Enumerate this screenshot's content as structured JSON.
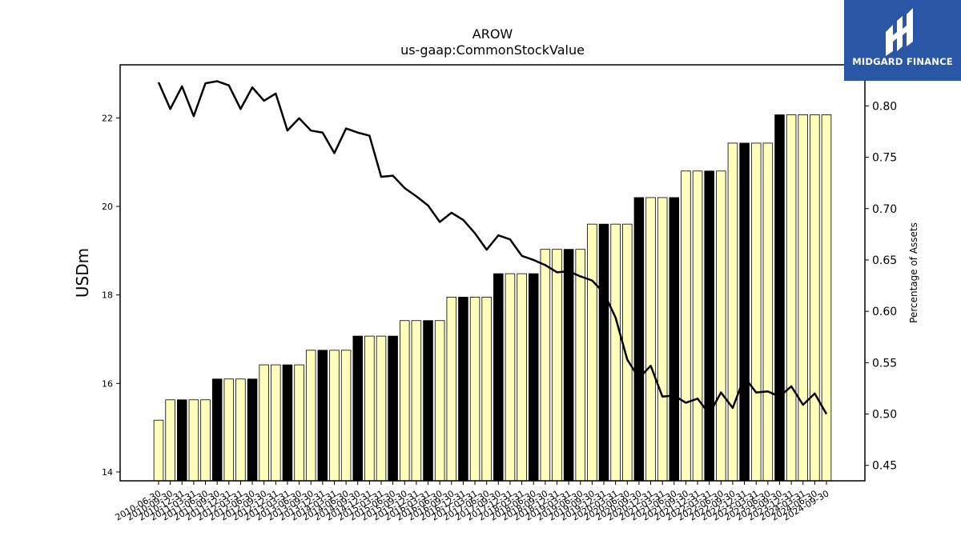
{
  "brand": {
    "name": "MIDGARD FINANCE",
    "bg_color": "#2a56a6"
  },
  "chart_data": {
    "type": "bar+line",
    "title": "AROW",
    "subtitle": "us-gaap:CommonStockValue",
    "ylabel": "USDm",
    "y2label": "Percentage of Assets",
    "ylim": [
      13.8,
      23.2
    ],
    "y2lim": [
      0.435,
      0.84
    ],
    "yticks": [
      14,
      16,
      18,
      20,
      22
    ],
    "y2ticks": [
      0.45,
      0.5,
      0.55,
      0.6,
      0.65,
      0.7,
      0.75,
      0.8
    ],
    "y2tick_labels": [
      "0.45",
      "0.50",
      "0.55",
      "0.60",
      "0.65",
      "0.70",
      "0.75",
      "0.80"
    ],
    "bar_color": "#ffffbb",
    "highlight_color": "#000000",
    "line_color": "#000000",
    "categories": [
      "2010-06-30",
      "2010-09-30",
      "2010-12-31",
      "2011-03-31",
      "2011-06-30",
      "2011-09-30",
      "2011-12-31",
      "2012-03-31",
      "2012-06-30",
      "2012-09-30",
      "2012-12-31",
      "2013-03-31",
      "2013-06-30",
      "2013-09-30",
      "2013-12-31",
      "2014-03-31",
      "2014-06-30",
      "2014-09-30",
      "2014-12-31",
      "2015-03-31",
      "2015-06-30",
      "2015-09-30",
      "2015-12-31",
      "2016-03-31",
      "2016-06-30",
      "2016-09-30",
      "2016-12-31",
      "2017-03-31",
      "2017-06-30",
      "2017-09-30",
      "2017-12-31",
      "2018-03-31",
      "2018-06-30",
      "2018-09-30",
      "2018-12-31",
      "2019-03-31",
      "2019-06-30",
      "2019-09-30",
      "2019-12-31",
      "2020-03-31",
      "2020-06-30",
      "2020-09-30",
      "2020-12-31",
      "2021-03-31",
      "2021-06-30",
      "2021-09-30",
      "2021-12-31",
      "2022-03-31",
      "2022-06-30",
      "2022-09-30",
      "2022-12-31",
      "2023-03-31",
      "2023-06-30",
      "2023-09-30",
      "2023-12-31",
      "2024-03-31",
      "2024-06-30",
      "2024-09-30"
    ],
    "values": [
      15.17,
      15.63,
      15.63,
      15.63,
      15.63,
      16.1,
      16.1,
      16.1,
      16.1,
      16.42,
      16.42,
      16.42,
      16.42,
      16.75,
      16.75,
      16.75,
      16.75,
      17.07,
      17.07,
      17.07,
      17.07,
      17.42,
      17.42,
      17.42,
      17.42,
      17.95,
      17.95,
      17.95,
      17.95,
      18.48,
      18.48,
      18.48,
      18.48,
      19.03,
      19.03,
      19.03,
      19.03,
      19.6,
      19.6,
      19.6,
      19.6,
      20.2,
      20.2,
      20.2,
      20.2,
      20.8,
      20.8,
      20.8,
      20.8,
      21.43,
      21.43,
      21.43,
      21.43,
      22.07,
      22.07,
      22.07,
      22.07,
      22.07
    ],
    "highlighted": [
      "2010-12-31",
      "2011-09-30",
      "2012-06-30",
      "2013-03-31",
      "2013-12-31",
      "2014-09-30",
      "2015-06-30",
      "2016-03-31",
      "2016-12-31",
      "2017-09-30",
      "2018-06-30",
      "2019-03-31",
      "2019-12-31",
      "2020-09-30",
      "2021-06-30",
      "2022-03-31",
      "2022-12-31",
      "2023-09-30"
    ],
    "line_values": [
      0.823,
      0.797,
      0.819,
      0.79,
      0.822,
      0.824,
      0.82,
      0.797,
      0.818,
      0.805,
      0.812,
      0.776,
      0.788,
      0.776,
      0.774,
      0.754,
      0.778,
      0.774,
      0.771,
      0.731,
      0.732,
      0.72,
      0.712,
      0.703,
      0.687,
      0.696,
      0.689,
      0.676,
      0.66,
      0.674,
      0.67,
      0.654,
      0.65,
      0.645,
      0.638,
      0.639,
      0.634,
      0.63,
      0.618,
      0.594,
      0.553,
      0.535,
      0.547,
      0.517,
      0.518,
      0.511,
      0.515,
      0.5,
      0.521,
      0.506,
      0.536,
      0.521,
      0.522,
      0.517,
      0.527,
      0.509,
      0.52,
      0.5
    ]
  }
}
